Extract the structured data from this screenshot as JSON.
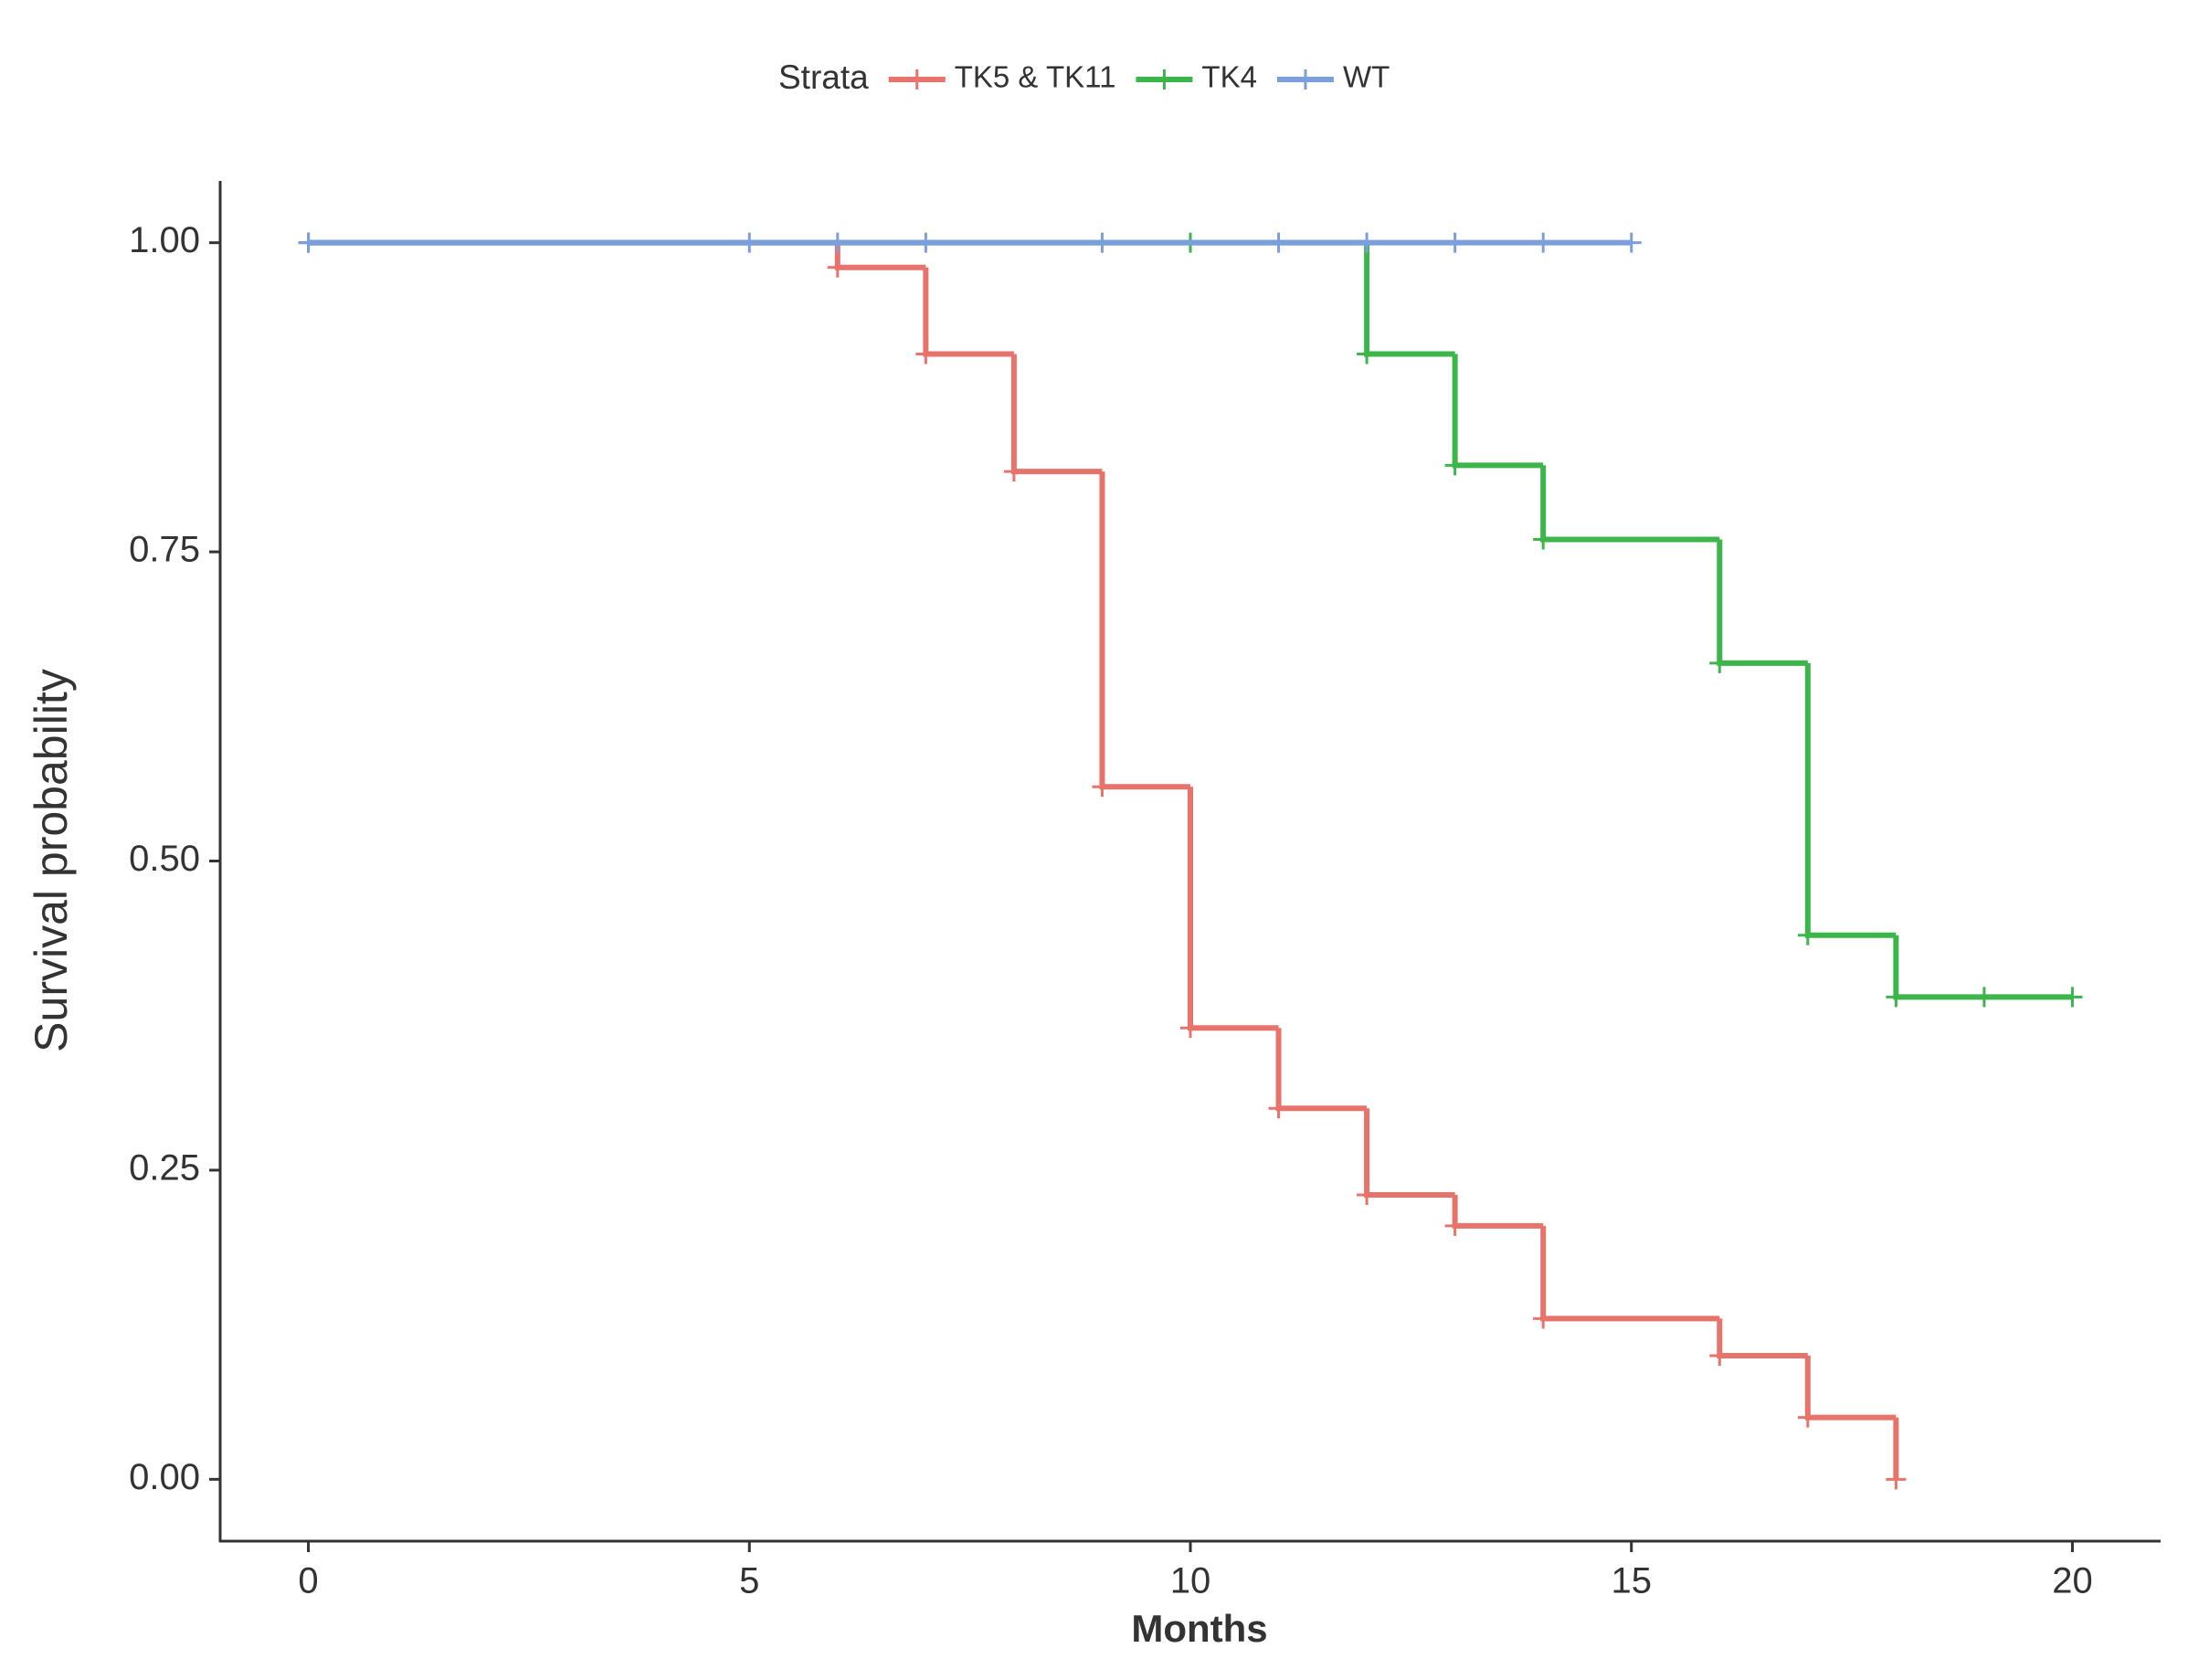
{
  "chart_data": {
    "type": "step",
    "x_label": "Months",
    "y_label": "Survival probability",
    "legend_title": "Strata",
    "legend_position": "top",
    "xlim": [
      -1,
      21
    ],
    "ylim": [
      -0.05,
      1.05
    ],
    "xticks": [
      0,
      5,
      10,
      15,
      20
    ],
    "yticks": [
      {
        "value": 0,
        "label": "0.00"
      },
      0.25,
      {
        "value": 0.5,
        "label": "0.50"
      },
      0.75,
      {
        "value": 1,
        "label": "1.00"
      }
    ],
    "grid": false,
    "series": [
      {
        "name": "TK5 & TK11",
        "color": "#e8736b",
        "x": [
          0,
          6,
          7,
          8,
          9,
          10,
          11,
          12,
          13,
          14,
          16,
          17,
          18
        ],
        "values": [
          1,
          0.98,
          0.91,
          0.815,
          0.56,
          0.365,
          0.3,
          0.23,
          0.205,
          0.13,
          0.1,
          0.05,
          0
        ]
      },
      {
        "name": "TK4",
        "color": "#3cb54a",
        "x": [
          0,
          10,
          12,
          13,
          14,
          16,
          17,
          18,
          19,
          20
        ],
        "values": [
          1,
          1,
          0.91,
          0.82,
          0.76,
          0.66,
          0.44,
          0.39,
          0.39,
          0.39
        ]
      },
      {
        "name": "WT",
        "color": "#7b9fdc",
        "x": [
          0,
          5,
          6,
          7,
          9,
          11,
          12,
          13,
          14,
          15
        ],
        "values": [
          1,
          1,
          1,
          1,
          1,
          1,
          1,
          1,
          1,
          1
        ]
      }
    ]
  }
}
